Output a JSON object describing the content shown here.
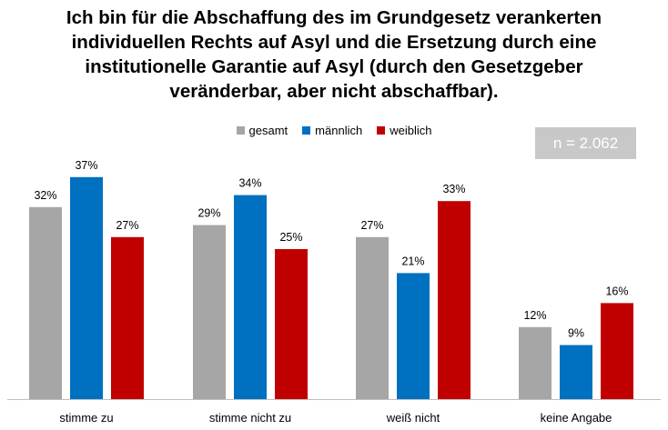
{
  "title_lines": [
    "Ich bin für die Abschaffung des im Grundgesetz verankerten",
    "individuellen Rechts auf Asyl und die Ersetzung durch eine",
    "institutionelle Garantie auf Asyl (durch den Gesetzgeber",
    "veränderbar, aber nicht abschaffbar)."
  ],
  "sample_label": "n = 2.062",
  "chart_data": {
    "type": "bar",
    "title": "Ich bin für die Abschaffung des im Grundgesetz verankerten individuellen Rechts auf Asyl und die Ersetzung durch eine institutionelle Garantie auf Asyl (durch den Gesetzgeber veränderbar, aber nicht abschaffbar).",
    "categories": [
      "stimme zu",
      "stimme nicht zu",
      "weiß nicht",
      "keine Angabe"
    ],
    "series": [
      {
        "name": "gesamt",
        "color": "#a6a6a6",
        "values": [
          32,
          29,
          27,
          12
        ]
      },
      {
        "name": "männlich",
        "color": "#0070c0",
        "values": [
          37,
          34,
          21,
          9
        ]
      },
      {
        "name": "weiblich",
        "color": "#c00000",
        "values": [
          27,
          25,
          33,
          16
        ]
      }
    ],
    "value_suffix": "%",
    "ylim": [
      0,
      40
    ],
    "grid": false,
    "legend": "top-center"
  }
}
